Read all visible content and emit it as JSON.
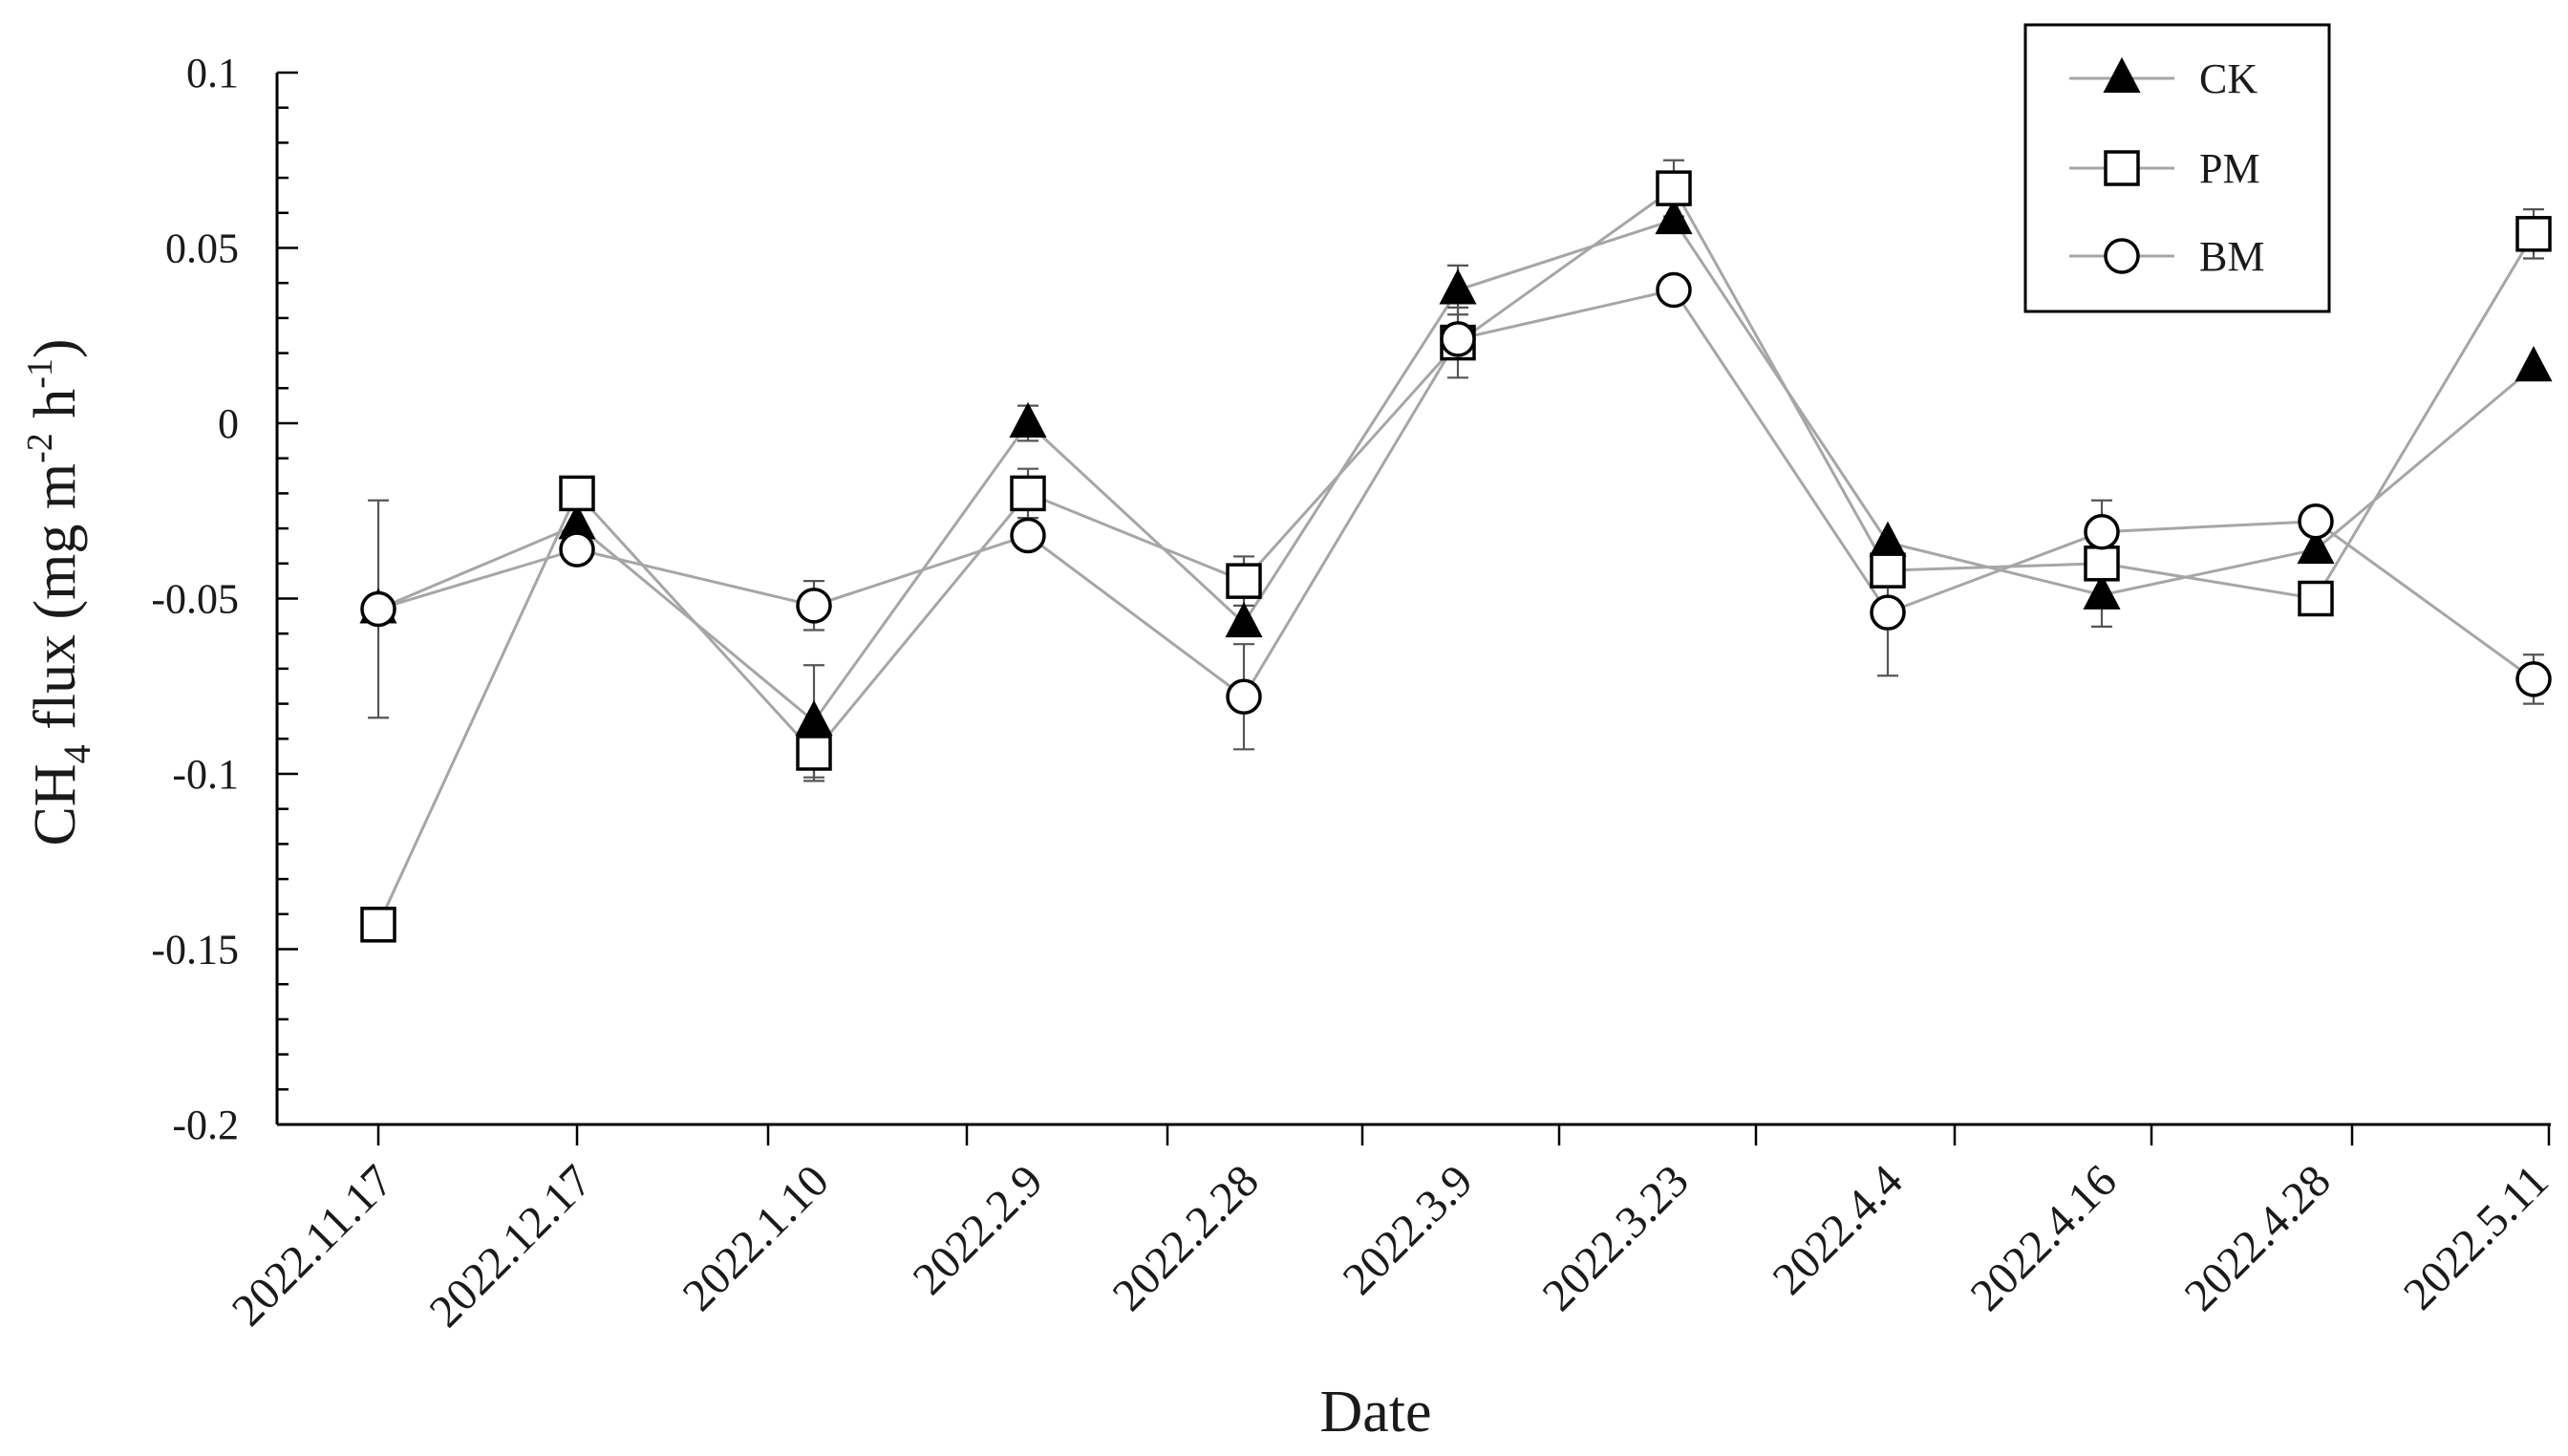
{
  "chart_data": {
    "type": "line",
    "title": "",
    "xlabel": "Date",
    "ylabel_main": "CH",
    "ylabel_sub": "4",
    "ylabel_rest": " flux  (mg m",
    "ylabel_sup1": "-2",
    "ylabel_mid": " h",
    "ylabel_sup2": "-1",
    "ylabel_end": ")",
    "ylim": [
      -0.2,
      0.1
    ],
    "yticks": [
      0.1,
      0.05,
      0,
      -0.05,
      -0.1,
      -0.15,
      -0.2
    ],
    "ytick_labels": [
      "0.1",
      "0.05",
      "0",
      "-0.05",
      "-0.1",
      "-0.15",
      "-0.2"
    ],
    "categories": [
      "2022.11.17",
      "2022.12.17",
      "2022.1.10",
      "2022.2.9",
      "2022.2.28",
      "2022.3.9",
      "2022.3.23",
      "2022.4.4",
      "2022.4.16",
      "2022.4.28",
      "2022.5.11"
    ],
    "grid": false,
    "legend_position": "top-right",
    "line_color": "#a6a6a6",
    "marker_color": "#000000",
    "series": [
      {
        "name": "CK",
        "marker": "filled-triangle",
        "values": [
          -0.053,
          -0.029,
          -0.085,
          0.0,
          -0.057,
          0.038,
          0.058,
          -0.034,
          -0.049,
          -0.036,
          0.016
        ],
        "errors": [
          0.031,
          0.0,
          0.016,
          0.005,
          0.0,
          0.007,
          0.0,
          0.0,
          0.009,
          0.0,
          0.0
        ]
      },
      {
        "name": "PM",
        "marker": "open-square",
        "values": [
          -0.143,
          -0.02,
          -0.094,
          -0.02,
          -0.045,
          0.023,
          0.067,
          -0.042,
          -0.04,
          -0.05,
          0.054
        ],
        "errors": [
          0.0,
          0.0,
          0.008,
          0.007,
          0.007,
          0.01,
          0.008,
          0.0,
          0.0,
          0.0,
          0.007
        ]
      },
      {
        "name": "BM",
        "marker": "open-circle",
        "values": [
          -0.053,
          -0.036,
          -0.052,
          -0.032,
          -0.078,
          0.024,
          0.038,
          -0.054,
          -0.031,
          -0.028,
          -0.073
        ],
        "errors": [
          0.0,
          0.0,
          0.007,
          0.0,
          0.015,
          0.0,
          0.0,
          0.018,
          0.009,
          0.0,
          0.007
        ]
      }
    ]
  }
}
